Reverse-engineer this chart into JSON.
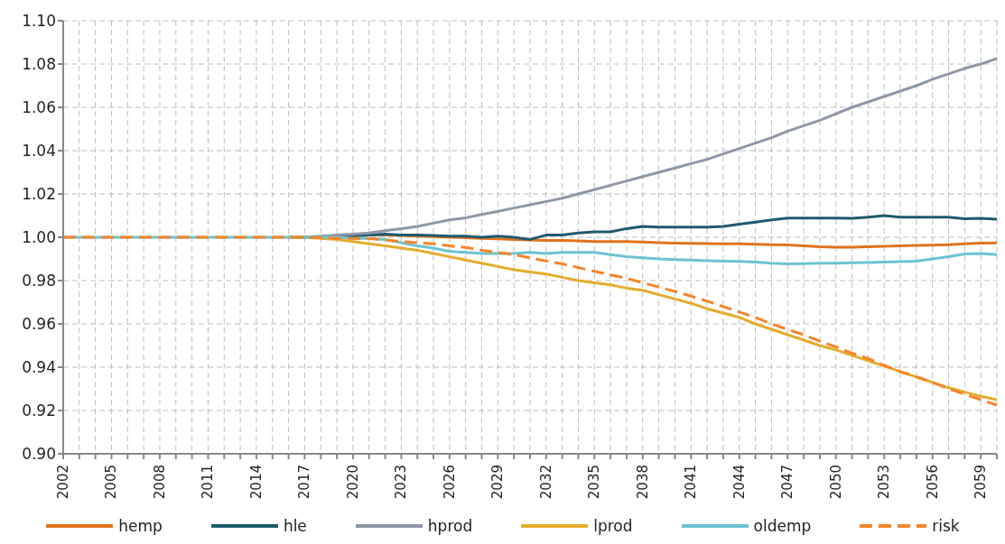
{
  "chart_data": {
    "type": "line",
    "x": [
      2002,
      2003,
      2004,
      2005,
      2006,
      2007,
      2008,
      2009,
      2010,
      2011,
      2012,
      2013,
      2014,
      2015,
      2016,
      2017,
      2018,
      2019,
      2020,
      2021,
      2022,
      2023,
      2024,
      2025,
      2026,
      2027,
      2028,
      2029,
      2030,
      2031,
      2032,
      2033,
      2034,
      2035,
      2036,
      2037,
      2038,
      2039,
      2040,
      2041,
      2042,
      2043,
      2044,
      2045,
      2046,
      2047,
      2048,
      2049,
      2050,
      2051,
      2052,
      2053,
      2054,
      2055,
      2056,
      2057,
      2058,
      2059,
      2060
    ],
    "series": [
      {
        "name": "hemp",
        "color": "#e0731c",
        "values": [
          null,
          null,
          null,
          null,
          null,
          null,
          null,
          null,
          null,
          null,
          null,
          null,
          null,
          null,
          1,
          1,
          1,
          1.0005,
          1.001,
          1.001,
          1.001,
          1.0008,
          1.0005,
          1.0003,
          1.0,
          0.9998,
          0.9995,
          0.9993,
          0.999,
          0.9988,
          0.9985,
          0.9985,
          0.9983,
          0.998,
          0.998,
          0.998,
          0.9978,
          0.9975,
          0.9973,
          0.9972,
          0.9971,
          0.997,
          0.997,
          0.9968,
          0.9966,
          0.9965,
          0.996,
          0.9956,
          0.9954,
          0.9954,
          0.9956,
          0.9958,
          0.996,
          0.9962,
          0.9964,
          0.9966,
          0.997,
          0.9973,
          0.9974
        ]
      },
      {
        "name": "hle",
        "color": "#1f5a6e",
        "values": [
          null,
          null,
          null,
          null,
          null,
          null,
          null,
          null,
          null,
          null,
          null,
          null,
          null,
          null,
          1,
          1,
          1,
          1,
          1.0005,
          1.001,
          1.0015,
          1.001,
          1.001,
          1.0008,
          1.0005,
          1.0005,
          1.0,
          1.0005,
          1.0,
          0.999,
          1.001,
          1.001,
          1.002,
          1.0025,
          1.0025,
          1.004,
          1.005,
          1.0047,
          1.0047,
          1.0047,
          1.0047,
          1.005,
          1.006,
          1.007,
          1.008,
          1.0089,
          1.0089,
          1.0089,
          1.0089,
          1.0087,
          1.0093,
          1.01,
          1.0093,
          1.0093,
          1.0093,
          1.0093,
          1.0085,
          1.0087,
          1.0083
        ]
      },
      {
        "name": "hprod",
        "color": "#8e97a6",
        "values": [
          null,
          null,
          null,
          null,
          null,
          null,
          null,
          null,
          null,
          null,
          null,
          null,
          null,
          null,
          1,
          1,
          1.0005,
          1.001,
          1.0015,
          1.002,
          1.003,
          1.004,
          1.005,
          1.0065,
          1.008,
          1.009,
          1.0105,
          1.012,
          1.0135,
          1.015,
          1.0165,
          1.018,
          1.02,
          1.022,
          1.024,
          1.026,
          1.028,
          1.03,
          1.032,
          1.034,
          1.036,
          1.0385,
          1.041,
          1.0435,
          1.046,
          1.049,
          1.0515,
          1.054,
          1.057,
          1.06,
          1.0625,
          1.065,
          1.0675,
          1.07,
          1.073,
          1.0755,
          1.078,
          1.08,
          1.0825
        ]
      },
      {
        "name": "lprod",
        "color": "#e4ac2c",
        "values": [
          null,
          null,
          null,
          null,
          null,
          null,
          null,
          null,
          null,
          null,
          null,
          null,
          null,
          null,
          1,
          1,
          0.9995,
          0.999,
          0.998,
          0.997,
          0.996,
          0.995,
          0.994,
          0.9925,
          0.991,
          0.9895,
          0.988,
          0.9865,
          0.985,
          0.984,
          0.983,
          0.9815,
          0.98,
          0.979,
          0.978,
          0.9765,
          0.9755,
          0.9735,
          0.9715,
          0.9695,
          0.967,
          0.965,
          0.963,
          0.96,
          0.9575,
          0.955,
          0.9525,
          0.95,
          0.948,
          0.9455,
          0.943,
          0.9405,
          0.938,
          0.9355,
          0.933,
          0.9305,
          0.9285,
          0.9266,
          0.925
        ]
      },
      {
        "name": "oldemp",
        "color": "#6cc3d1",
        "values": [
          1,
          1,
          1,
          1,
          1,
          1,
          1,
          1,
          1,
          1,
          1,
          1,
          1,
          1,
          1,
          1,
          1,
          1,
          0.9995,
          0.9995,
          0.999,
          0.9975,
          0.996,
          0.995,
          0.9935,
          0.993,
          0.9925,
          0.9925,
          0.9925,
          0.993,
          0.9925,
          0.993,
          0.993,
          0.993,
          0.992,
          0.991,
          0.9905,
          0.99,
          0.9897,
          0.9895,
          0.9892,
          0.989,
          0.9889,
          0.9885,
          0.988,
          0.9877,
          0.9878,
          0.988,
          0.988,
          0.9882,
          0.9883,
          0.9885,
          0.9888,
          0.989,
          0.99,
          0.991,
          0.9923,
          0.9925,
          0.992
        ]
      },
      {
        "name": "risk",
        "color": "#f5842a",
        "line_style": "dashed",
        "values": [
          1,
          1,
          1,
          1,
          1,
          1,
          1,
          1,
          1,
          1,
          1,
          1,
          1,
          1,
          1,
          1,
          0.9998,
          0.9995,
          0.9995,
          0.9994,
          0.9988,
          0.998,
          0.9975,
          0.997,
          0.996,
          0.9953,
          0.994,
          0.993,
          0.992,
          0.9905,
          0.989,
          0.9877,
          0.986,
          0.9843,
          0.9826,
          0.981,
          0.979,
          0.977,
          0.975,
          0.9728,
          0.9705,
          0.968,
          0.9655,
          0.963,
          0.96,
          0.9574,
          0.955,
          0.952,
          0.9494,
          0.9465,
          0.944,
          0.9409,
          0.938,
          0.9355,
          0.933,
          0.93,
          0.9275,
          0.925,
          0.9225
        ]
      }
    ],
    "xlim": [
      2002,
      2060
    ],
    "xticks": [
      2002,
      {
        "value": 2003,
        "label": null
      },
      {
        "value": 2004,
        "label": null
      },
      2005,
      {
        "value": 2006,
        "label": null
      },
      {
        "value": 2007,
        "label": null
      },
      2008,
      {
        "value": 2009,
        "label": null
      },
      {
        "value": 2010,
        "label": null
      },
      2011,
      {
        "value": 2012,
        "label": null
      },
      {
        "value": 2013,
        "label": null
      },
      2014,
      {
        "value": 2015,
        "label": null
      },
      {
        "value": 2016,
        "label": null
      },
      2017,
      {
        "value": 2018,
        "label": null
      },
      {
        "value": 2019,
        "label": null
      },
      2020,
      {
        "value": 2021,
        "label": null
      },
      {
        "value": 2022,
        "label": null
      },
      2023,
      {
        "value": 2024,
        "label": null
      },
      {
        "value": 2025,
        "label": null
      },
      2026,
      {
        "value": 2027,
        "label": null
      },
      {
        "value": 2028,
        "label": null
      },
      2029,
      {
        "value": 2030,
        "label": null
      },
      {
        "value": 2031,
        "label": null
      },
      2032,
      {
        "value": 2033,
        "label": null
      },
      {
        "value": 2034,
        "label": null
      },
      2035,
      {
        "value": 2036,
        "label": null
      },
      {
        "value": 2037,
        "label": null
      },
      2038,
      {
        "value": 2039,
        "label": null
      },
      {
        "value": 2040,
        "label": null
      },
      2041,
      {
        "value": 2042,
        "label": null
      },
      {
        "value": 2043,
        "label": null
      },
      2044,
      {
        "value": 2045,
        "label": null
      },
      {
        "value": 2046,
        "label": null
      },
      2047,
      {
        "value": 2048,
        "label": null
      },
      {
        "value": 2049,
        "label": null
      },
      2050,
      {
        "value": 2051,
        "label": null
      },
      {
        "value": 2052,
        "label": null
      },
      2053,
      {
        "value": 2054,
        "label": null
      },
      {
        "value": 2055,
        "label": null
      },
      2056,
      {
        "value": 2057,
        "label": null
      },
      {
        "value": 2058,
        "label": null
      },
      2059,
      {
        "value": 2060,
        "label": null
      }
    ],
    "ylim": [
      0.9,
      1.1
    ],
    "yticks": [
      {
        "value": 0.9,
        "label": "0.90"
      },
      0.92,
      0.94,
      0.96,
      0.98,
      {
        "value": 1.0,
        "label": "1.00"
      },
      1.02,
      1.04,
      1.06,
      1.08,
      {
        "value": 1.1,
        "label": "1.10"
      }
    ],
    "grid": true,
    "legend": "bottom"
  }
}
